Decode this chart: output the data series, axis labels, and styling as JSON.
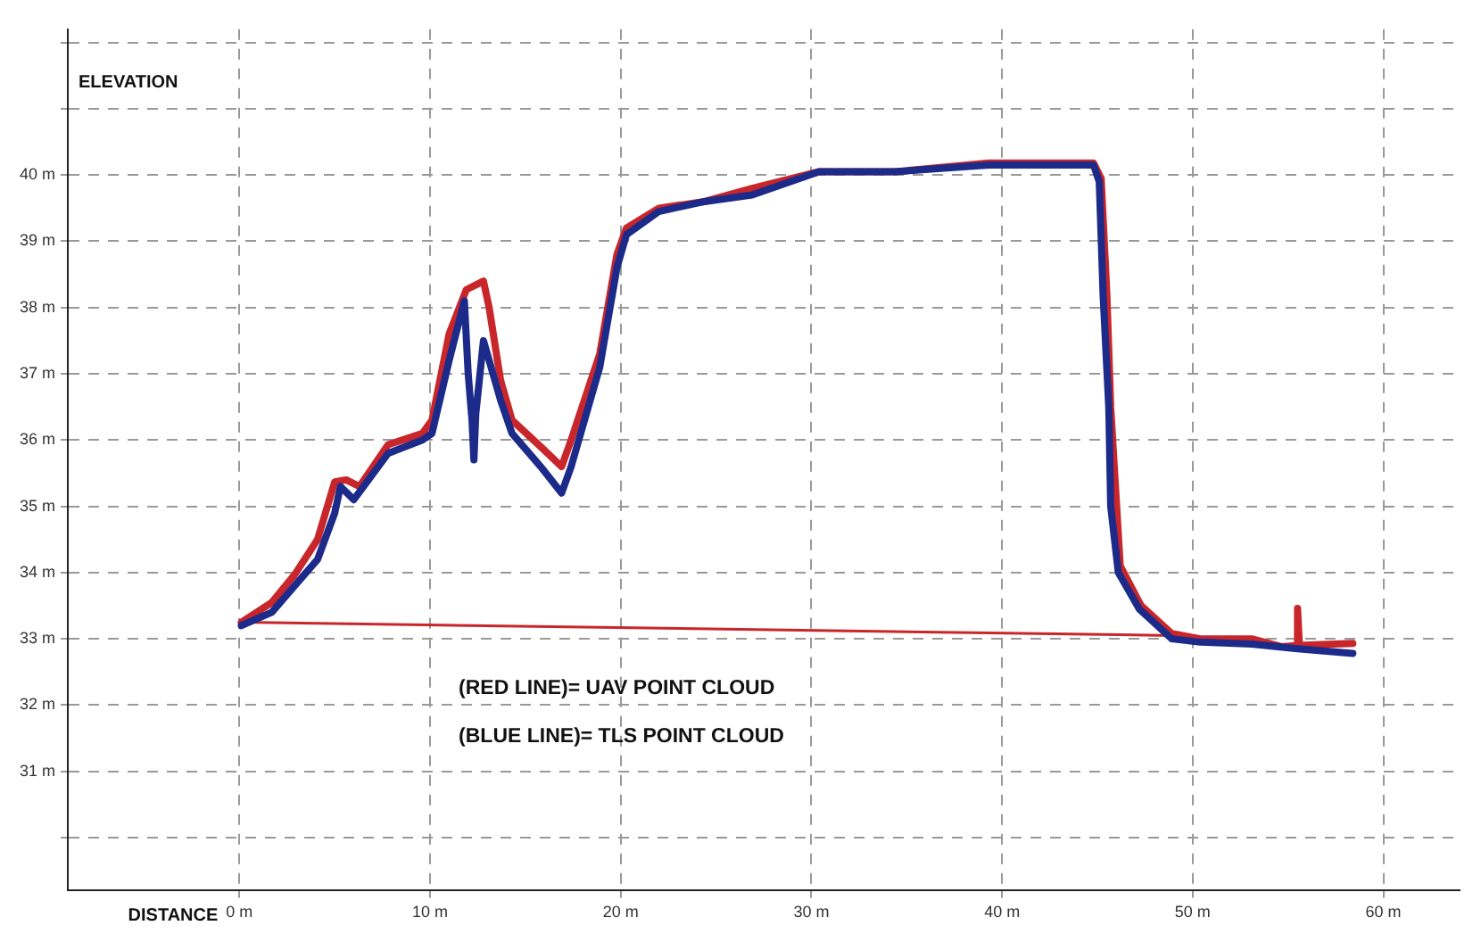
{
  "chart_data": {
    "type": "line",
    "xlabel": "DISTANCE",
    "ylabel": "ELEVATION",
    "xlim": [
      -9,
      64
    ],
    "ylim": [
      29.2,
      42.2
    ],
    "xticks": [
      {
        "value": 0,
        "label": "0 m"
      },
      {
        "value": 10,
        "label": "10 m"
      },
      {
        "value": 20,
        "label": "20 m"
      },
      {
        "value": 30,
        "label": "30 m"
      },
      {
        "value": 40,
        "label": "40 m"
      },
      {
        "value": 50,
        "label": "50 m"
      },
      {
        "value": 60,
        "label": "60 m"
      }
    ],
    "yticks": [
      {
        "value": 30,
        "label": null
      },
      {
        "value": 31,
        "label": "31 m"
      },
      {
        "value": 32,
        "label": "32 m"
      },
      {
        "value": 33,
        "label": "33 m"
      },
      {
        "value": 34,
        "label": "34 m"
      },
      {
        "value": 35,
        "label": "35 m"
      },
      {
        "value": 36,
        "label": "36 m"
      },
      {
        "value": 37,
        "label": "37 m"
      },
      {
        "value": 38,
        "label": "38 m"
      },
      {
        "value": 39,
        "label": "39 m"
      },
      {
        "value": 40,
        "label": "40 m"
      },
      {
        "value": 41,
        "label": null
      },
      {
        "value": 42,
        "label": null
      }
    ],
    "grid": true,
    "legend": false,
    "marker": "none",
    "annotations": [
      "(RED LINE)= UAV POINT CLOUD",
      "(BLUE LINE)= TLS POINT CLOUD"
    ],
    "series": [
      {
        "color": "#1c2a8a",
        "x": [
          0.1,
          1.7,
          2.9,
          4.1,
          5.0,
          5.3,
          6.0,
          7.8,
          9.6,
          10.1,
          11.0,
          11.8,
          12.0,
          12.2,
          12.3,
          12.4,
          12.8,
          13.7,
          14.3,
          15.8,
          16.9,
          17.4,
          18.9,
          19.8,
          20.3,
          22.0,
          24.4,
          26.9,
          30.4,
          34.4,
          39.3,
          44.8,
          45.1,
          45.3,
          45.6,
          45.7,
          46.1,
          47.2,
          48.9,
          50.4,
          53.1,
          55.5,
          58.4
        ],
        "values": [
          33.2,
          33.4,
          33.8,
          34.2,
          34.9,
          35.3,
          35.1,
          35.8,
          36.0,
          36.1,
          37.2,
          38.1,
          37.0,
          36.3,
          35.7,
          36.4,
          37.5,
          36.6,
          36.1,
          35.6,
          35.2,
          35.6,
          37.1,
          38.6,
          39.1,
          39.45,
          39.6,
          39.7,
          40.05,
          40.05,
          40.15,
          40.15,
          39.9,
          38.2,
          36.5,
          35.0,
          34.0,
          33.45,
          33.0,
          32.95,
          32.92,
          32.85,
          32.78
        ]
      },
      {
        "color": "#c8262a",
        "x": [
          0.1,
          1.7,
          2.9,
          4.1,
          5.0,
          5.6,
          6.3,
          7.8,
          9.6,
          10.1,
          11.0,
          11.9,
          12.8,
          13.1,
          13.7,
          14.3,
          15.8,
          16.9,
          17.4,
          18.9,
          19.8,
          20.3,
          22.0,
          24.4,
          26.9,
          30.4,
          34.4,
          39.3,
          44.8,
          45.2,
          45.5,
          45.7,
          46.2,
          47.3,
          48.9,
          50.4,
          53.1,
          54.7,
          55.5,
          55.5,
          55.6,
          58.4
        ],
        "values": [
          33.25,
          33.55,
          33.97,
          34.5,
          35.37,
          35.4,
          35.3,
          35.93,
          36.1,
          36.3,
          37.6,
          38.27,
          38.4,
          38.0,
          36.9,
          36.3,
          35.9,
          35.6,
          36.0,
          37.3,
          38.8,
          39.2,
          39.5,
          39.6,
          39.8,
          40.05,
          40.05,
          40.18,
          40.18,
          39.95,
          38.2,
          36.5,
          34.1,
          33.5,
          33.08,
          33.0,
          33.0,
          32.88,
          32.9,
          33.46,
          32.9,
          32.93
        ]
      },
      {
        "color": "#c8262a",
        "x": [
          0.1,
          49.0
        ],
        "values": [
          33.25,
          33.05
        ]
      }
    ]
  }
}
